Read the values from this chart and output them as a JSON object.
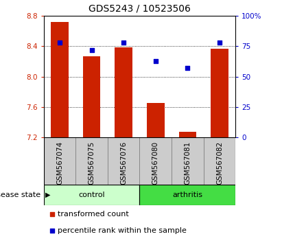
{
  "title": "GDS5243 / 10523506",
  "samples": [
    "GSM567074",
    "GSM567075",
    "GSM567076",
    "GSM567080",
    "GSM567081",
    "GSM567082"
  ],
  "bar_values": [
    8.72,
    8.27,
    8.38,
    7.65,
    7.27,
    8.37
  ],
  "percentile_values": [
    78,
    72,
    78,
    63,
    57,
    78
  ],
  "y_min": 7.2,
  "y_max": 8.8,
  "y_ticks": [
    7.2,
    7.6,
    8.0,
    8.4,
    8.8
  ],
  "right_y_ticks": [
    0,
    25,
    50,
    75,
    100
  ],
  "bar_color": "#cc2200",
  "percentile_color": "#0000cc",
  "bar_width": 0.55,
  "control_color": "#ccffcc",
  "arthritis_color": "#44dd44",
  "xtick_bg": "#cccccc",
  "group_label": "disease state",
  "legend_bar_label": "transformed count",
  "legend_percentile_label": "percentile rank within the sample",
  "title_fontsize": 10,
  "tick_fontsize": 7.5,
  "label_fontsize": 8
}
